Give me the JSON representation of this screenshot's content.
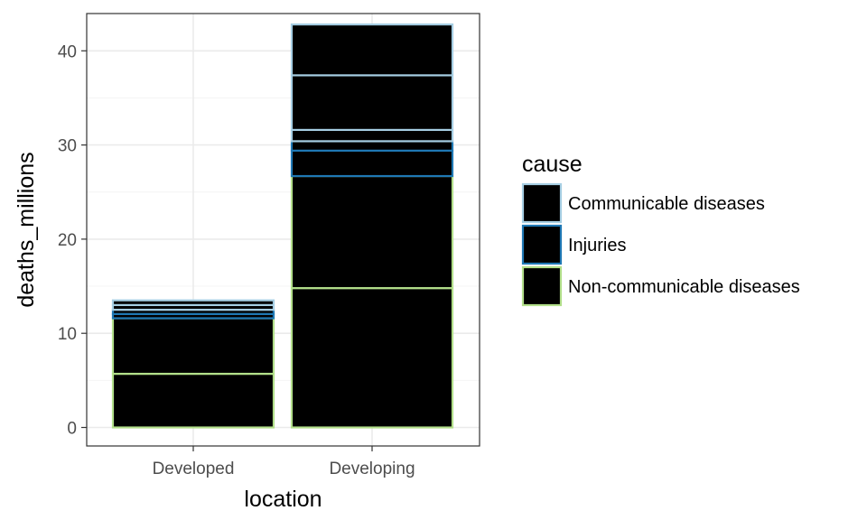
{
  "chart_data": {
    "type": "bar",
    "stacked": true,
    "xlabel": "location",
    "ylabel": "deaths_millions",
    "categories": [
      "Developed",
      "Developing"
    ],
    "ylim": [
      0,
      42
    ],
    "yticks": [
      0,
      10,
      20,
      30,
      40
    ],
    "grid": true,
    "legend": {
      "title": "cause",
      "position": "right"
    },
    "fill_color": "#000000",
    "series": [
      {
        "name": "Non-communicable diseases",
        "outline_color": "#b2df8a",
        "segments": [
          [
            5.7,
            5.9
          ],
          [
            14.8,
            11.9
          ]
        ]
      },
      {
        "name": "Injuries",
        "outline_color": "#1f78b4",
        "segments": [
          [
            0.45,
            0.45
          ],
          [
            2.7,
            1.0
          ]
        ]
      },
      {
        "name": "Communicable diseases",
        "outline_color": "#a6cee3",
        "segments": [
          [
            0.5,
            0.5
          ],
          [
            1.2,
            5.8,
            5.4
          ]
        ]
      }
    ],
    "legend_entries": [
      "Communicable diseases",
      "Injuries",
      "Non-communicable diseases"
    ]
  }
}
